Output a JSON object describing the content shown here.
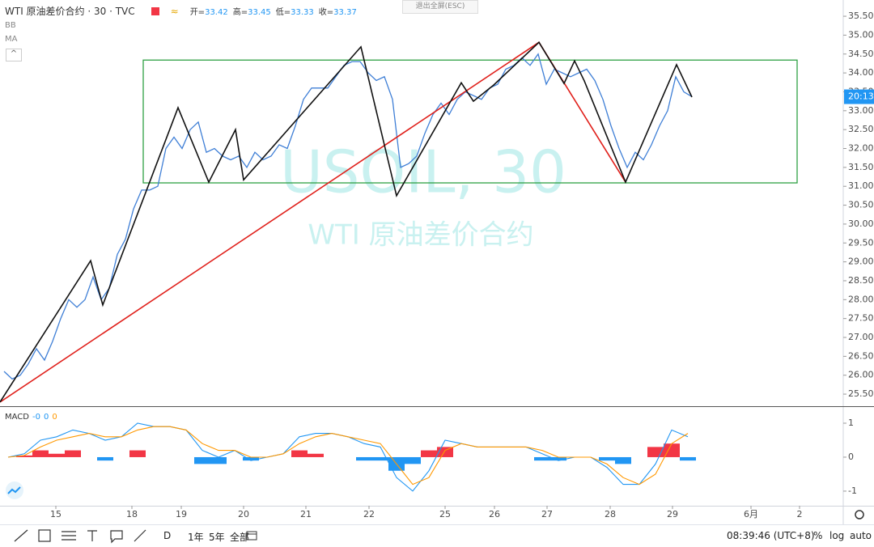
{
  "header": {
    "symbol": "WTI 原油差价合约 · 30 · TVC",
    "ohlc": [
      {
        "label": "开=",
        "value": 33.42
      },
      {
        "label": "高=",
        "value": 33.45
      },
      {
        "label": "低=",
        "value": 33.33
      },
      {
        "label": "收=",
        "value": 33.37
      }
    ],
    "indicators": [
      "BB",
      "MA"
    ],
    "exit_fullscreen": "退出全屏(ESC)",
    "macd_label": "MACD",
    "macd_values": [
      "-0",
      "0",
      "0"
    ]
  },
  "watermark": {
    "symbol": "USOIL, 30",
    "name": "WTI 原油差价合约"
  },
  "price_tag": "20:13",
  "toolbar": {
    "ranges": [
      "D",
      "1年",
      "5年",
      "全部"
    ],
    "clock": "08:39:46 (UTC+8)",
    "scale_options": [
      "%",
      "log",
      "auto"
    ]
  },
  "chart_data": [
    {
      "type": "line",
      "xlim": [
        0,
        104.2
      ],
      "ylim": [
        25.18,
        35.93
      ],
      "xticks": [
        {
          "value": 6.9,
          "label": "15"
        },
        {
          "value": 16.3,
          "label": "18"
        },
        {
          "value": 22.4,
          "label": "19"
        },
        {
          "value": 30.1,
          "label": "20"
        },
        {
          "value": 37.8,
          "label": "21"
        },
        {
          "value": 45.6,
          "label": "22"
        },
        {
          "value": 55,
          "label": "25"
        },
        {
          "value": 61.1,
          "label": "26"
        },
        {
          "value": 67.6,
          "label": "27"
        },
        {
          "value": 75.4,
          "label": "28"
        },
        {
          "value": 83.1,
          "label": "29"
        },
        {
          "value": 92.8,
          "label": "6月"
        },
        {
          "value": 98.8,
          "label": "2"
        }
      ],
      "yticks": [
        {
          "value": 35.5,
          "label": "35.50"
        },
        {
          "value": 35,
          "label": "35.00"
        },
        {
          "value": 34.5,
          "label": "34.50"
        },
        {
          "value": 34,
          "label": "34.00"
        },
        {
          "value": 33.5,
          "label": "33.50"
        },
        {
          "value": 33,
          "label": "33.00"
        },
        {
          "value": 32.5,
          "label": "32.50"
        },
        {
          "value": 32,
          "label": "32.00"
        },
        {
          "value": 31.5,
          "label": "31.50"
        },
        {
          "value": 31,
          "label": "31.00"
        },
        {
          "value": 30.5,
          "label": "30.50"
        },
        {
          "value": 30,
          "label": "30.00"
        },
        {
          "value": 29.5,
          "label": "29.50"
        },
        {
          "value": 29,
          "label": "29.00"
        },
        {
          "value": 28.5,
          "label": "28.50"
        },
        {
          "value": 28,
          "label": "28.00"
        },
        {
          "value": 27.5,
          "label": "27.50"
        },
        {
          "value": 27,
          "label": "27.00"
        },
        {
          "value": 26.5,
          "label": "26.50"
        },
        {
          "value": 26,
          "label": "26.00"
        },
        {
          "value": 25.5,
          "label": "25.50"
        }
      ],
      "x": [
        0.5,
        1.5,
        2.5,
        3.5,
        4.5,
        5.5,
        6.5,
        7.5,
        8.5,
        9.5,
        10.5,
        11.5,
        12.5,
        13.5,
        14.5,
        15.5,
        16.5,
        17.5,
        18.5,
        19.5,
        20.5,
        21.5,
        22.5,
        23.5,
        24.5,
        25.5,
        26.5,
        27.5,
        28.5,
        29.5,
        30.5,
        31.5,
        32.5,
        33.5,
        34.5,
        35.5,
        36.5,
        37.5,
        38.5,
        39.5,
        40.5,
        41.5,
        42.5,
        43.5,
        44.5,
        45.5,
        46.5,
        47.5,
        48.5,
        49.5,
        50.5,
        51.5,
        52.5,
        53.5,
        54.5,
        55.5,
        56.5,
        57.5,
        58.5,
        59.5,
        60.5,
        61.5,
        62.5,
        63.5,
        64.5,
        65.5,
        66.5,
        67.5,
        68.5,
        69.5,
        70.5,
        71.5,
        72.5,
        73.5,
        74.5,
        75.5,
        76.5,
        77.5,
        78.5,
        79.5,
        80.5,
        81.5,
        82.5,
        83.5,
        84.5,
        85.5
      ],
      "series": [
        {
          "color": "#3f7fd6",
          "values": [
            26.1,
            25.9,
            26.0,
            26.3,
            26.7,
            26.4,
            26.9,
            27.5,
            28.0,
            27.8,
            28.0,
            28.6,
            28.0,
            28.3,
            29.2,
            29.6,
            30.4,
            30.9,
            30.9,
            31.0,
            32.0,
            32.3,
            32.0,
            32.5,
            32.7,
            31.9,
            32.0,
            31.8,
            31.7,
            31.8,
            31.5,
            31.9,
            31.7,
            31.8,
            32.1,
            32.0,
            32.6,
            33.3,
            33.6,
            33.6,
            33.6,
            33.9,
            34.2,
            34.3,
            34.3,
            34.0,
            33.8,
            33.9,
            33.3,
            31.5,
            31.6,
            31.8,
            32.4,
            32.9,
            33.2,
            32.9,
            33.3,
            33.5,
            33.4,
            33.3,
            33.6,
            33.7,
            34.1,
            34.2,
            34.4,
            34.2,
            34.5,
            33.7,
            34.1,
            34.0,
            33.9,
            34.0,
            34.1,
            33.8,
            33.3,
            32.6,
            32.0,
            31.5,
            31.9,
            31.7,
            32.1,
            32.6,
            33.0,
            33.9,
            33.5,
            33.37
          ]
        }
      ],
      "zigzag": {
        "color": "#111111",
        "x": [
          0,
          11.2,
          12.7,
          22,
          25.8,
          29.1,
          30.1,
          44.6,
          49,
          57,
          58.5,
          61,
          66.6,
          69.7,
          71,
          72.2,
          77.3,
          83.6,
          85.5
        ],
        "values": [
          25.29,
          29.03,
          27.86,
          33.08,
          31.11,
          32.5,
          31.17,
          34.69,
          30.75,
          33.74,
          33.25,
          33.68,
          34.81,
          33.72,
          34.32,
          33.79,
          31.11,
          34.22,
          33.36
        ]
      },
      "trendline": {
        "color": "#e0201b",
        "x": [
          0,
          66.6,
          77.3
        ],
        "values": [
          25.29,
          34.81,
          31.11
        ]
      },
      "range_box": {
        "color": "#2ea043",
        "xlim": [
          17.7,
          98.5
        ],
        "ylim": [
          31.09,
          34.34
        ]
      },
      "price_tag_color": "#2196f3"
    },
    {
      "type": "macd",
      "xlim": [
        0,
        104.2
      ],
      "ylim": [
        -1.43,
        1.5
      ],
      "yticks": [
        1,
        0,
        -1
      ],
      "x": [
        1,
        3,
        5,
        7,
        9,
        11,
        13,
        15,
        17,
        19,
        21,
        23,
        25,
        27,
        29,
        31,
        33,
        35,
        37,
        39,
        41,
        43,
        45,
        47,
        49,
        51,
        53,
        55,
        57,
        59,
        61,
        63,
        65,
        67,
        69,
        71,
        73,
        75,
        77,
        79,
        81,
        83,
        85
      ],
      "series": [
        {
          "color": "#2196f3",
          "values": [
            0.0,
            0.1,
            0.5,
            0.6,
            0.8,
            0.7,
            0.5,
            0.6,
            1.0,
            0.9,
            0.9,
            0.8,
            0.2,
            0.0,
            0.2,
            -0.1,
            0.0,
            0.1,
            0.6,
            0.7,
            0.7,
            0.6,
            0.4,
            0.3,
            -0.6,
            -1.0,
            -0.4,
            0.5,
            0.4,
            0.3,
            0.3,
            0.3,
            0.3,
            0.1,
            -0.1,
            0.0,
            0.0,
            -0.3,
            -0.8,
            -0.8,
            -0.2,
            0.8,
            0.6
          ]
        },
        {
          "color": "#ff9800",
          "values": [
            0.0,
            0.05,
            0.3,
            0.5,
            0.6,
            0.7,
            0.6,
            0.6,
            0.8,
            0.9,
            0.9,
            0.8,
            0.4,
            0.2,
            0.2,
            0.0,
            0.0,
            0.1,
            0.4,
            0.6,
            0.7,
            0.6,
            0.5,
            0.4,
            -0.2,
            -0.8,
            -0.6,
            0.2,
            0.4,
            0.3,
            0.3,
            0.3,
            0.3,
            0.2,
            0.0,
            0.0,
            0.0,
            -0.2,
            -0.6,
            -0.8,
            -0.5,
            0.4,
            0.7
          ]
        }
      ],
      "histogram": {
        "colors": [
          "#f23645",
          "#2196f3"
        ],
        "values": [
          0,
          0.05,
          0.2,
          0.1,
          0.2,
          0,
          -0.1,
          0,
          0.2,
          0,
          0,
          0,
          -0.2,
          -0.2,
          0,
          -0.1,
          0,
          0,
          0.2,
          0.1,
          0,
          0,
          -0.1,
          -0.1,
          -0.4,
          -0.2,
          0.2,
          0.3,
          0,
          0,
          0,
          0,
          0,
          -0.1,
          -0.1,
          0,
          0,
          -0.1,
          -0.2,
          0,
          0.3,
          0.4,
          -0.1
        ]
      }
    }
  ]
}
